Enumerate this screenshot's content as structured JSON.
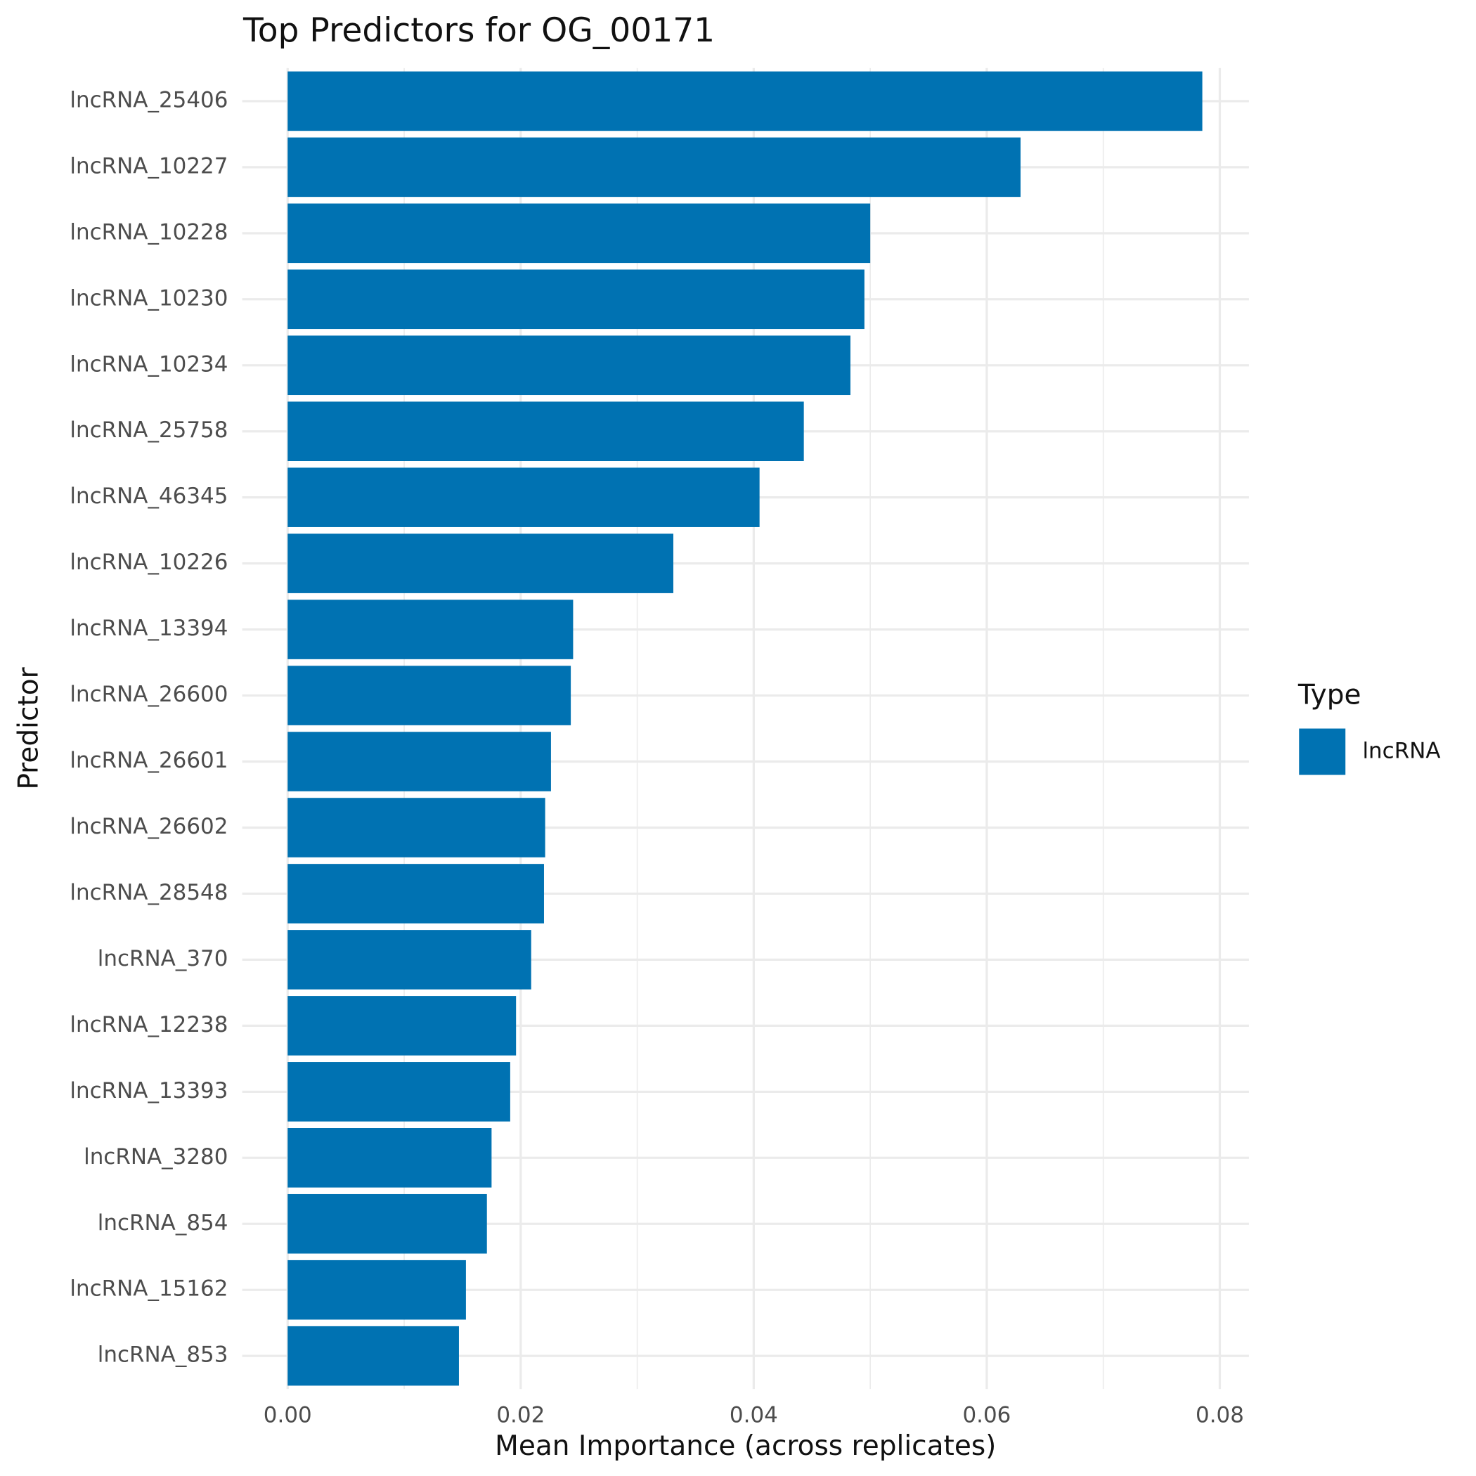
{
  "chart_data": {
    "type": "barh",
    "title": "Top Predictors for OG_00171",
    "x_label": "Mean Importance (across replicates)",
    "y_label": "Predictor",
    "categories": [
      "lncRNA_25406",
      "lncRNA_10227",
      "lncRNA_10228",
      "lncRNA_10230",
      "lncRNA_10234",
      "lncRNA_25758",
      "lncRNA_46345",
      "lncRNA_10226",
      "lncRNA_13394",
      "lncRNA_26600",
      "lncRNA_26601",
      "lncRNA_26602",
      "lncRNA_28548",
      "lncRNA_370",
      "lncRNA_12238",
      "lncRNA_13393",
      "lncRNA_3280",
      "lncRNA_854",
      "lncRNA_15162",
      "lncRNA_853"
    ],
    "series": [
      {
        "name": "lncRNA",
        "color": "#0072b2",
        "values": [
          0.0785,
          0.0629,
          0.05,
          0.0495,
          0.0483,
          0.0443,
          0.0405,
          0.0331,
          0.0245,
          0.0243,
          0.0226,
          0.0221,
          0.022,
          0.0209,
          0.0196,
          0.0191,
          0.0175,
          0.0171,
          0.0153,
          0.0147
        ]
      }
    ],
    "legend_title": "Type",
    "legend": "right",
    "xlim": [
      -0.0039,
      0.0825
    ],
    "xticks": [
      {
        "value": 0,
        "label": "0.00"
      },
      {
        "value": 0.02,
        "label": "0.02"
      },
      {
        "value": 0.04,
        "label": "0.04"
      },
      {
        "value": 0.06,
        "label": "0.06"
      },
      {
        "value": 0.08,
        "label": "0.08"
      }
    ],
    "x_minor_ticks": [
      0.01,
      0.03,
      0.05,
      0.07
    ],
    "grid": true
  }
}
